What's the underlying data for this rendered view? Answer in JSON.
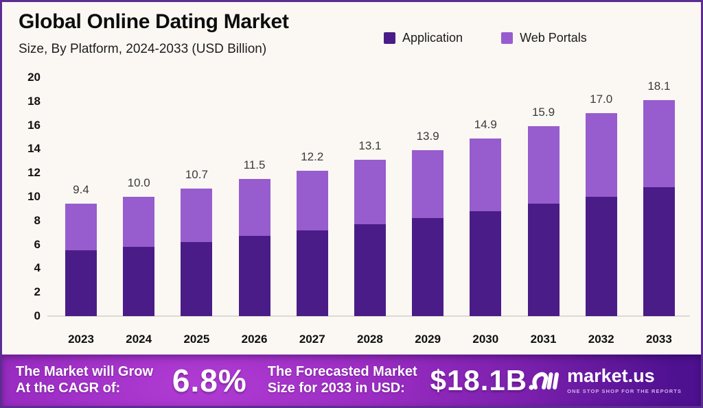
{
  "header": {
    "title": "Global Online Dating Market",
    "subtitle": "Size, By Platform, 2024-2033 (USD Billion)"
  },
  "legend": {
    "items": [
      {
        "label": "Application",
        "color": "#4a1c87"
      },
      {
        "label": "Web Portals",
        "color": "#975cce"
      }
    ]
  },
  "chart_data": {
    "type": "bar",
    "stacked": true,
    "title": "Global Online Dating Market Size, By Platform, 2024-2033 (USD Billion)",
    "categories": [
      "2023",
      "2024",
      "2025",
      "2026",
      "2027",
      "2028",
      "2029",
      "2030",
      "2031",
      "2032",
      "2033"
    ],
    "series": [
      {
        "name": "Application",
        "color": "#4a1c87",
        "values": [
          5.5,
          5.8,
          6.2,
          6.7,
          7.2,
          7.7,
          8.2,
          8.8,
          9.4,
          10.0,
          10.8
        ]
      },
      {
        "name": "Web Portals",
        "color": "#975cce",
        "values": [
          3.9,
          4.2,
          4.5,
          4.8,
          5.0,
          5.4,
          5.7,
          6.1,
          6.5,
          7.0,
          7.3
        ]
      }
    ],
    "totals": [
      9.4,
      10.0,
      10.7,
      11.5,
      12.2,
      13.1,
      13.9,
      14.9,
      15.9,
      17.0,
      18.1
    ],
    "total_labels": [
      "9.4",
      "10.0",
      "10.7",
      "11.5",
      "12.2",
      "13.1",
      "13.9",
      "14.9",
      "15.9",
      "17.0",
      "18.1"
    ],
    "xlabel": "",
    "ylabel": "",
    "ylim": [
      0,
      20
    ],
    "ytick_step": 2,
    "grid": false,
    "legend_position": "top-right"
  },
  "footer": {
    "cagr_label_line1": "The Market will Grow",
    "cagr_label_line2": "At the CAGR of:",
    "cagr_value": "6.8%",
    "forecast_label_line1": "The Forecasted Market",
    "forecast_label_line2": "Size for 2033 in USD:",
    "forecast_value": "$18.1B",
    "logo_text": "market.us",
    "logo_tagline": "ONE STOP SHOP FOR THE REPORTS"
  },
  "colors": {
    "application": "#4a1c87",
    "web_portals": "#975cce",
    "frame_border": "#5c2d91",
    "background": "#fbf8f3",
    "footer_gradient_bright": "#b13cd4",
    "footer_gradient_dark": "#4e1190"
  }
}
